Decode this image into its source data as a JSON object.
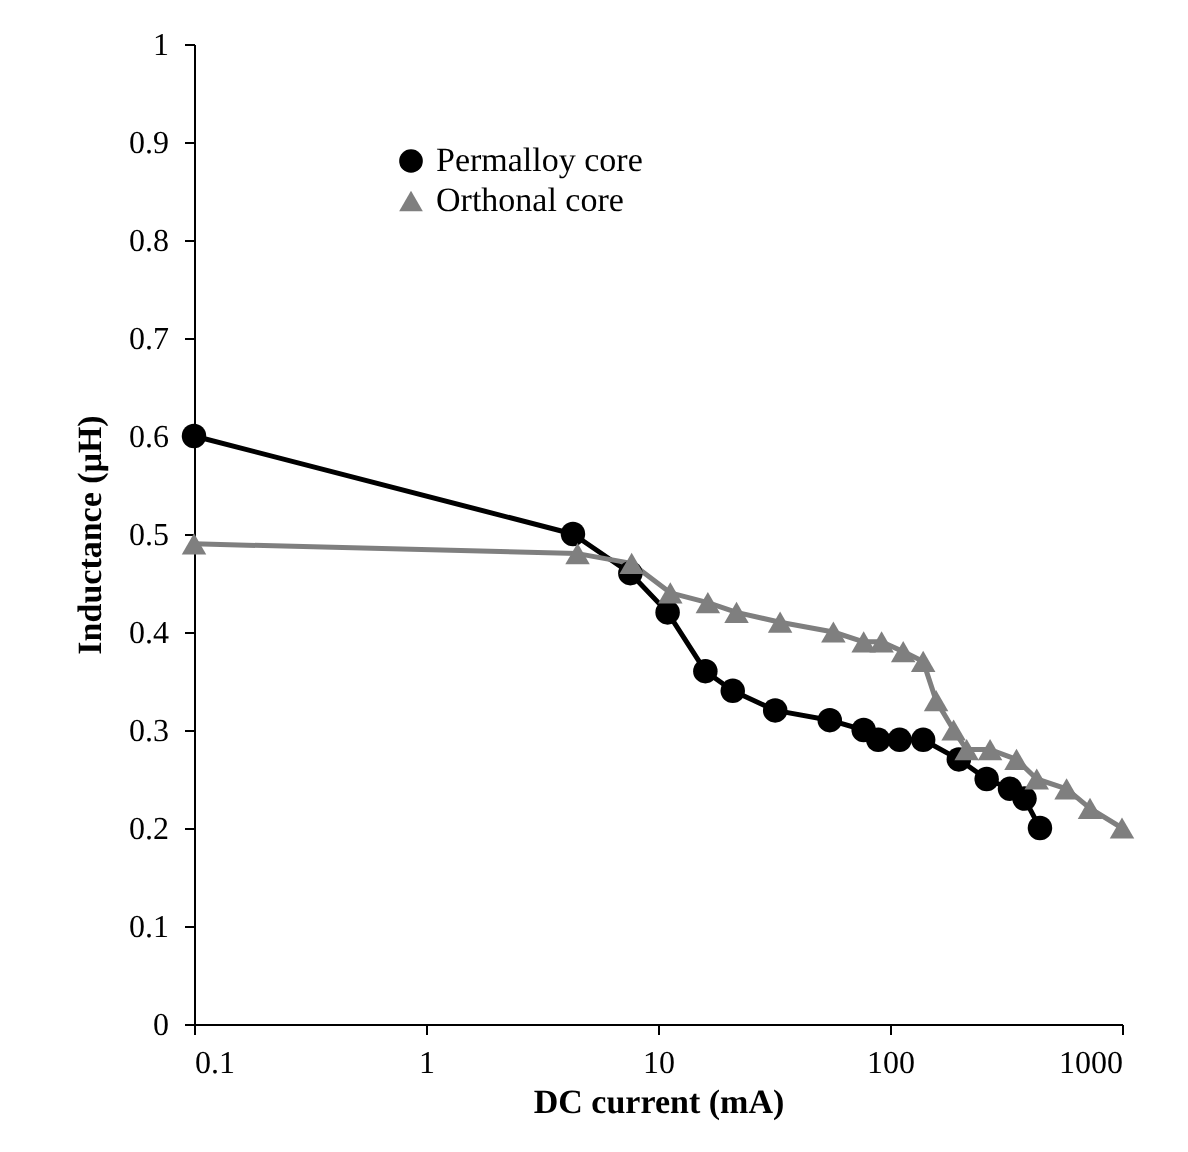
{
  "chart_data": {
    "type": "line",
    "xlabel": "DC current (mA)",
    "ylabel": "Inductance (μH)",
    "log": "x",
    "xlim": [
      0.1,
      1000
    ],
    "xticks": [
      0.1,
      1,
      10,
      100,
      1000
    ],
    "ylim": [
      0,
      1
    ],
    "yticks": [
      0,
      0.1,
      0.2,
      0.3,
      0.4,
      0.5,
      0.6,
      0.7,
      0.8,
      0.9,
      1
    ],
    "grid": false,
    "legend": "top",
    "series": [
      {
        "name": "Permalloy core",
        "color": "#000000",
        "marker": "circle",
        "line_style": "solid",
        "x": [
          0.1,
          4.3,
          7.6,
          11,
          16,
          21,
          32,
          55,
          77,
          89,
          110,
          139,
          198,
          261,
          329,
          380,
          443
        ],
        "values": [
          0.6,
          0.5,
          0.46,
          0.42,
          0.36,
          0.34,
          0.32,
          0.31,
          0.3,
          0.29,
          0.29,
          0.29,
          0.27,
          0.25,
          0.24,
          0.23,
          0.2
        ]
      },
      {
        "name": "Orthonal core",
        "color": "#7f7f7f",
        "marker": "triangle",
        "line_style": "solid",
        "x": [
          0.1,
          4.5,
          7.7,
          11.3,
          16.4,
          21.8,
          33.6,
          57,
          77,
          92,
          114,
          139,
          158,
          188,
          214,
          270,
          351,
          429,
          577,
          728,
          1000
        ],
        "values": [
          0.49,
          0.48,
          0.47,
          0.44,
          0.43,
          0.42,
          0.41,
          0.4,
          0.39,
          0.39,
          0.38,
          0.37,
          0.33,
          0.3,
          0.28,
          0.28,
          0.27,
          0.25,
          0.24,
          0.22,
          0.2
        ]
      }
    ]
  }
}
